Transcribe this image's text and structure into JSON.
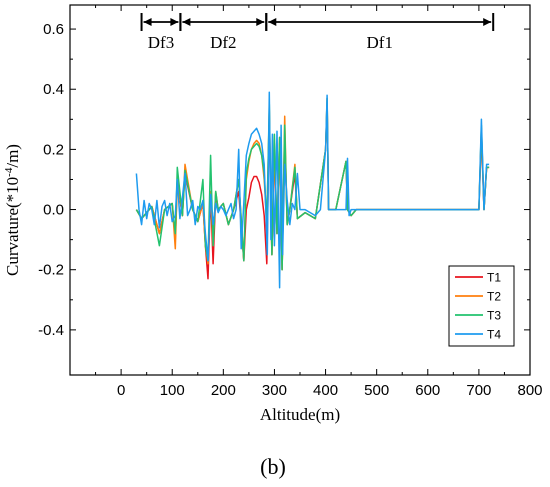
{
  "chart_data": {
    "type": "line",
    "title": "",
    "xlabel": "Altitude(m)",
    "ylabel_parts": [
      "Curvature(*10",
      "-4",
      "/m)"
    ],
    "xlim": [
      -100,
      800
    ],
    "ylim": [
      -0.55,
      0.68
    ],
    "xticks": [
      0,
      100,
      200,
      300,
      400,
      500,
      600,
      700,
      800
    ],
    "yticks": [
      -0.4,
      -0.2,
      0.0,
      0.2,
      0.4,
      0.6
    ],
    "ytick_labels": [
      "-0.4",
      "-0.2",
      "0.0",
      "0.2",
      "0.4",
      "0.6"
    ],
    "legend_position": "lower-right",
    "colors": {
      "T1": "#e8141e",
      "T2": "#ff7f0e",
      "T3": "#23c26e",
      "T4": "#1e9bef"
    },
    "segments": [
      {
        "label": "Df3",
        "from": 40,
        "to": 116
      },
      {
        "label": "Df2",
        "from": 116,
        "to": 284
      },
      {
        "label": "Df1",
        "from": 284,
        "to": 728
      }
    ],
    "series": [
      {
        "name": "T1",
        "x": [
          30,
          40,
          60,
          75,
          85,
          100,
          106,
          110,
          120,
          125,
          140,
          150,
          160,
          165,
          170,
          175,
          180,
          185,
          190,
          200,
          210,
          220,
          230,
          240,
          245,
          250,
          255,
          260,
          265,
          270,
          275,
          280,
          285,
          290,
          295,
          300,
          305,
          310,
          315,
          320,
          325,
          330,
          340,
          345,
          360,
          380,
          400,
          403,
          406,
          420,
          440,
          443,
          450,
          460,
          470,
          500,
          550,
          600,
          650,
          700,
          705,
          710,
          715,
          720
        ],
        "y": [
          0.0,
          -0.03,
          0.01,
          -0.08,
          0.0,
          0.02,
          -0.1,
          0.09,
          -0.02,
          0.12,
          0.0,
          -0.04,
          0.02,
          -0.12,
          -0.23,
          0.05,
          -0.18,
          0.05,
          0.0,
          0.02,
          -0.05,
          0.0,
          0.06,
          -0.17,
          0.0,
          0.04,
          0.09,
          0.11,
          0.11,
          0.09,
          0.05,
          -0.02,
          -0.18,
          0.3,
          -0.15,
          0.2,
          -0.08,
          0.22,
          -0.2,
          0.25,
          -0.05,
          0.0,
          0.12,
          -0.03,
          -0.01,
          -0.03,
          0.2,
          0.35,
          0.0,
          0.0,
          0.16,
          0.0,
          -0.02,
          0.0,
          0.0,
          0.0,
          0.0,
          0.0,
          0.0,
          0.0,
          0.25,
          0.0,
          0.14,
          0.14
        ]
      },
      {
        "name": "T2",
        "x": [
          30,
          40,
          60,
          75,
          85,
          100,
          106,
          110,
          120,
          125,
          140,
          150,
          160,
          165,
          170,
          175,
          180,
          185,
          190,
          200,
          210,
          220,
          230,
          240,
          245,
          250,
          255,
          260,
          265,
          270,
          275,
          280,
          285,
          290,
          295,
          300,
          305,
          310,
          315,
          320,
          325,
          330,
          340,
          345,
          360,
          380,
          400,
          403,
          406,
          420,
          440,
          443,
          450,
          460,
          470,
          500,
          550,
          600,
          650,
          700,
          705,
          710,
          715,
          720
        ],
        "y": [
          0.0,
          -0.03,
          0.01,
          -0.08,
          0.0,
          0.02,
          -0.13,
          0.1,
          -0.02,
          0.15,
          0.0,
          -0.04,
          0.02,
          -0.12,
          -0.18,
          0.06,
          -0.12,
          0.06,
          0.0,
          0.02,
          -0.05,
          0.0,
          0.1,
          -0.17,
          0.1,
          0.16,
          0.2,
          0.22,
          0.23,
          0.22,
          0.18,
          0.1,
          -0.05,
          0.33,
          -0.15,
          0.22,
          -0.08,
          0.24,
          -0.2,
          0.31,
          -0.05,
          0.0,
          0.15,
          -0.03,
          -0.01,
          -0.03,
          0.2,
          0.37,
          0.0,
          0.0,
          0.16,
          0.0,
          -0.02,
          0.0,
          0.0,
          0.0,
          0.0,
          0.0,
          0.0,
          0.0,
          0.27,
          0.0,
          0.14,
          0.14
        ]
      },
      {
        "name": "T3",
        "x": [
          30,
          40,
          60,
          75,
          85,
          100,
          106,
          110,
          120,
          125,
          140,
          150,
          160,
          165,
          170,
          175,
          180,
          185,
          190,
          200,
          210,
          220,
          230,
          240,
          245,
          250,
          255,
          260,
          265,
          270,
          275,
          280,
          285,
          290,
          295,
          300,
          305,
          310,
          315,
          320,
          325,
          330,
          340,
          345,
          360,
          380,
          400,
          403,
          406,
          420,
          440,
          443,
          450,
          460,
          470,
          500,
          550,
          600,
          650,
          700,
          705,
          710,
          715,
          720
        ],
        "y": [
          0.0,
          -0.03,
          0.01,
          -0.12,
          0.0,
          0.02,
          -0.08,
          0.14,
          -0.02,
          0.13,
          0.0,
          -0.04,
          0.1,
          -0.12,
          -0.17,
          0.18,
          -0.12,
          0.06,
          0.0,
          0.02,
          -0.05,
          0.0,
          0.1,
          -0.17,
          0.12,
          0.17,
          0.2,
          0.21,
          0.22,
          0.21,
          0.18,
          0.12,
          -0.05,
          0.35,
          -0.15,
          0.25,
          -0.08,
          0.24,
          -0.2,
          0.28,
          -0.05,
          0.0,
          0.14,
          -0.03,
          -0.01,
          -0.03,
          0.2,
          0.37,
          0.0,
          0.0,
          0.16,
          0.0,
          -0.02,
          0.0,
          0.0,
          0.0,
          0.0,
          0.0,
          0.0,
          0.0,
          0.28,
          0.0,
          0.14,
          0.14
        ]
      },
      {
        "name": "T4",
        "x": [
          30,
          35,
          40,
          45,
          50,
          55,
          60,
          65,
          70,
          75,
          80,
          85,
          90,
          95,
          100,
          106,
          110,
          115,
          120,
          125,
          130,
          135,
          140,
          145,
          150,
          155,
          160,
          165,
          170,
          175,
          180,
          185,
          190,
          195,
          200,
          205,
          210,
          215,
          220,
          225,
          230,
          235,
          240,
          245,
          250,
          255,
          260,
          265,
          270,
          275,
          280,
          283,
          286,
          290,
          293,
          296,
          300,
          305,
          310,
          313,
          316,
          320,
          325,
          330,
          335,
          340,
          345,
          350,
          360,
          370,
          380,
          390,
          400,
          403,
          406,
          410,
          420,
          430,
          440,
          443,
          446,
          450,
          460,
          470,
          480,
          500,
          550,
          600,
          650,
          700,
          705,
          710,
          715,
          720
        ],
        "y": [
          0.12,
          0.0,
          -0.05,
          0.03,
          -0.03,
          0.02,
          0.0,
          -0.05,
          0.03,
          -0.06,
          0.01,
          0.03,
          -0.02,
          0.02,
          -0.04,
          -0.02,
          0.1,
          -0.03,
          0.04,
          0.12,
          -0.02,
          0.0,
          0.03,
          -0.05,
          0.01,
          0.0,
          0.03,
          -0.08,
          -0.17,
          0.05,
          -0.05,
          0.02,
          -0.01,
          0.01,
          0.0,
          -0.02,
          0.0,
          0.02,
          -0.03,
          0.0,
          0.2,
          -0.13,
          0.02,
          0.18,
          0.22,
          0.25,
          0.26,
          0.27,
          0.25,
          0.22,
          0.15,
          0.0,
          -0.15,
          0.39,
          -0.1,
          0.25,
          -0.12,
          0.26,
          -0.26,
          0.28,
          -0.15,
          0.15,
          0.03,
          -0.05,
          0.02,
          0.0,
          0.12,
          0.0,
          0.0,
          -0.01,
          -0.02,
          0.0,
          0.2,
          0.38,
          0.0,
          0.0,
          0.0,
          0.0,
          0.0,
          0.17,
          -0.02,
          0.0,
          0.0,
          0.0,
          0.0,
          0.0,
          0.0,
          0.0,
          0.0,
          0.0,
          0.3,
          0.0,
          0.15,
          0.15
        ]
      }
    ]
  },
  "caption": "(b)"
}
